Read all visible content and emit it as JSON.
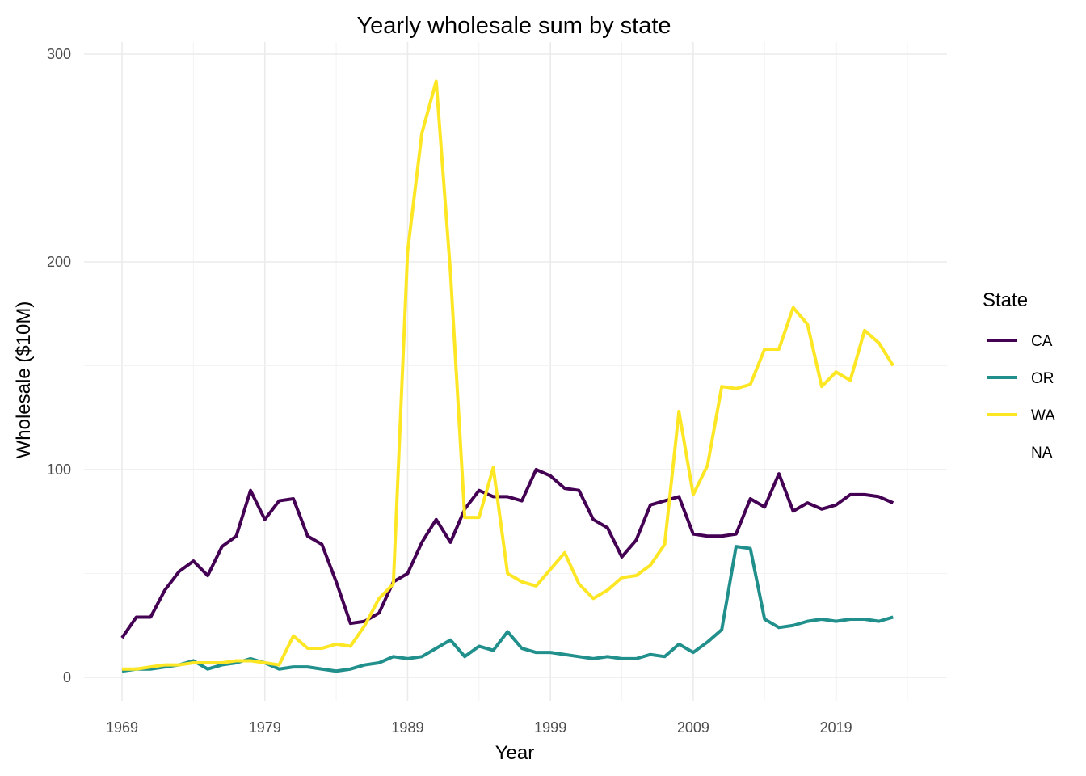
{
  "chart_data": {
    "type": "line",
    "title": "Yearly wholesale sum by state",
    "xlabel": "Year",
    "ylabel": "Wholesale ($10M)",
    "xlim": [
      1969,
      2024
    ],
    "ylim": [
      0,
      300
    ],
    "x_ticks": [
      1969,
      1979,
      1989,
      1999,
      2009,
      2019
    ],
    "y_ticks": [
      0,
      100,
      200,
      300
    ],
    "grid": true,
    "legend": {
      "title": "State",
      "placement": "right",
      "entries": [
        "CA",
        "OR",
        "WA",
        "NA"
      ]
    },
    "x": [
      1969,
      1970,
      1971,
      1972,
      1973,
      1974,
      1975,
      1976,
      1977,
      1978,
      1979,
      1980,
      1981,
      1982,
      1983,
      1984,
      1985,
      1986,
      1987,
      1988,
      1989,
      1990,
      1991,
      1992,
      1993,
      1994,
      1995,
      1996,
      1997,
      1998,
      1999,
      2000,
      2001,
      2002,
      2003,
      2004,
      2005,
      2006,
      2007,
      2008,
      2009,
      2010,
      2011,
      2012,
      2013,
      2014,
      2015,
      2016,
      2017,
      2018,
      2019,
      2020,
      2021,
      2022,
      2023,
      2024
    ],
    "series": [
      {
        "name": "CA",
        "color": "#440154",
        "values": [
          19,
          29,
          29,
          42,
          51,
          56,
          49,
          63,
          68,
          90,
          76,
          85,
          86,
          68,
          64,
          46,
          26,
          27,
          31,
          46,
          50,
          65,
          76,
          65,
          81,
          90,
          87,
          87,
          85,
          100,
          97,
          91,
          90,
          76,
          72,
          58,
          66,
          83,
          85,
          87,
          69,
          68,
          68,
          69,
          86,
          82,
          98,
          80,
          84,
          81,
          83,
          88,
          88,
          87,
          84,
          null
        ]
      },
      {
        "name": "OR",
        "color": "#21908C",
        "values": [
          3,
          4,
          4,
          5,
          6,
          8,
          4,
          6,
          7,
          9,
          7,
          4,
          5,
          5,
          4,
          3,
          4,
          6,
          7,
          10,
          9,
          10,
          14,
          18,
          10,
          15,
          13,
          22,
          14,
          12,
          12,
          11,
          10,
          9,
          10,
          9,
          9,
          11,
          10,
          16,
          12,
          17,
          23,
          63,
          62,
          28,
          24,
          25,
          27,
          28,
          27,
          28,
          28,
          27,
          29,
          null
        ]
      },
      {
        "name": "WA",
        "color": "#FDE725",
        "values": [
          4,
          4,
          5,
          6,
          6,
          7,
          7,
          7,
          8,
          8,
          7,
          6,
          20,
          14,
          14,
          16,
          15,
          25,
          38,
          45,
          205,
          262,
          287,
          195,
          77,
          77,
          101,
          50,
          46,
          44,
          52,
          60,
          45,
          38,
          42,
          48,
          49,
          54,
          64,
          128,
          88,
          102,
          140,
          139,
          141,
          158,
          158,
          178,
          170,
          140,
          147,
          143,
          167,
          161,
          150,
          null
        ]
      }
    ]
  }
}
